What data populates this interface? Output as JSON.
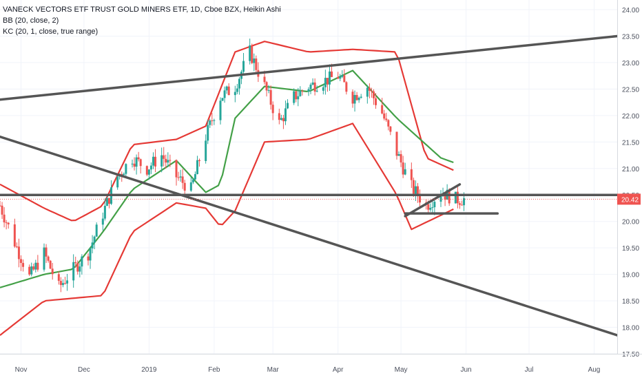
{
  "header": {
    "title": "VANECK VECTORS ETF TRUST GOLD MINERS ETF, 1D, Cboe BZX, Heikin Ashi",
    "indicator_bb": "BB (20, close, 2)",
    "indicator_kc": "KC (20, 1, close, true range)"
  },
  "colors": {
    "up": "#26a69a",
    "down": "#ef5350",
    "bollinger": "#e53935",
    "keltner": "#43a047",
    "trendline": "#555555",
    "last_price": "#ef5350"
  },
  "chart_data": {
    "type": "candlestick",
    "y_axis": {
      "ticks": [
        "24.00",
        "23.50",
        "23.00",
        "22.50",
        "22.00",
        "21.50",
        "21.00",
        "20.50",
        "20.00",
        "19.50",
        "19.00",
        "18.50",
        "18.00",
        "17.50"
      ],
      "range": [
        17.5,
        24.0
      ]
    },
    "x_axis": {
      "labels": [
        "Nov",
        "Dec",
        "2019",
        "Feb",
        "Mar",
        "Apr",
        "May",
        "Jun",
        "Jul",
        "Aug"
      ],
      "range": [
        "2018-10-22",
        "2019-08-12"
      ]
    },
    "last_price": "20.42",
    "price_path": [
      [
        "2018-10-22",
        20.3
      ],
      [
        "2018-10-29",
        19.6
      ],
      [
        "2018-11-05",
        18.95
      ],
      [
        "2018-11-12",
        19.4
      ],
      [
        "2018-11-19",
        18.75
      ],
      [
        "2018-11-26",
        19.1
      ],
      [
        "2018-12-03",
        19.4
      ],
      [
        "2018-12-10",
        20.15
      ],
      [
        "2018-12-17",
        20.85
      ],
      [
        "2018-12-24",
        21.2
      ],
      [
        "2018-12-31",
        21.0
      ],
      [
        "2019-01-07",
        21.25
      ],
      [
        "2019-01-14",
        20.85
      ],
      [
        "2019-01-21",
        20.6
      ],
      [
        "2019-01-28",
        21.6
      ],
      [
        "2019-02-04",
        22.35
      ],
      [
        "2019-02-11",
        22.55
      ],
      [
        "2019-02-18",
        23.2
      ],
      [
        "2019-02-25",
        22.55
      ],
      [
        "2019-03-04",
        21.85
      ],
      [
        "2019-03-11",
        22.35
      ],
      [
        "2019-03-18",
        22.55
      ],
      [
        "2019-03-25",
        22.65
      ],
      [
        "2019-04-01",
        22.75
      ],
      [
        "2019-04-08",
        22.35
      ],
      [
        "2019-04-15",
        22.55
      ],
      [
        "2019-04-22",
        22.05
      ],
      [
        "2019-04-29",
        21.3
      ],
      [
        "2019-05-06",
        20.65
      ],
      [
        "2019-05-13",
        20.3
      ],
      [
        "2019-05-20",
        20.55
      ],
      [
        "2019-05-27",
        20.42
      ]
    ],
    "bollinger_upper": [
      [
        "2018-10-22",
        20.7
      ],
      [
        "2018-11-12",
        20.25
      ],
      [
        "2018-11-26",
        20.0
      ],
      [
        "2018-12-10",
        20.3
      ],
      [
        "2018-12-24",
        21.45
      ],
      [
        "2019-01-14",
        21.55
      ],
      [
        "2019-01-28",
        21.8
      ],
      [
        "2019-02-11",
        23.2
      ],
      [
        "2019-02-25",
        23.4
      ],
      [
        "2019-03-18",
        23.2
      ],
      [
        "2019-04-08",
        23.25
      ],
      [
        "2019-04-29",
        23.2
      ],
      [
        "2019-05-13",
        21.2
      ],
      [
        "2019-05-27",
        20.95
      ]
    ],
    "bollinger_lower": [
      [
        "2018-10-22",
        17.85
      ],
      [
        "2018-11-12",
        18.5
      ],
      [
        "2018-11-26",
        18.55
      ],
      [
        "2018-12-10",
        18.6
      ],
      [
        "2018-12-24",
        19.8
      ],
      [
        "2019-01-14",
        20.35
      ],
      [
        "2019-01-28",
        20.25
      ],
      [
        "2019-02-04",
        19.9
      ],
      [
        "2019-02-11",
        20.2
      ],
      [
        "2019-02-25",
        21.5
      ],
      [
        "2019-03-18",
        21.55
      ],
      [
        "2019-04-08",
        21.85
      ],
      [
        "2019-04-29",
        20.5
      ],
      [
        "2019-05-06",
        19.85
      ],
      [
        "2019-05-27",
        20.25
      ]
    ],
    "keltner_middle": [
      [
        "2018-10-22",
        18.75
      ],
      [
        "2018-11-12",
        19.0
      ],
      [
        "2018-11-26",
        19.1
      ],
      [
        "2018-12-10",
        19.8
      ],
      [
        "2018-12-24",
        20.6
      ],
      [
        "2019-01-14",
        21.15
      ],
      [
        "2019-01-28",
        20.55
      ],
      [
        "2019-02-04",
        20.7
      ],
      [
        "2019-02-11",
        21.95
      ],
      [
        "2019-02-25",
        22.55
      ],
      [
        "2019-03-18",
        22.45
      ],
      [
        "2019-04-08",
        22.85
      ],
      [
        "2019-04-29",
        21.95
      ],
      [
        "2019-05-20",
        21.2
      ],
      [
        "2019-05-27",
        21.1
      ]
    ],
    "trendlines": [
      {
        "label": "upper-trendline",
        "from": [
          "2018-10-22",
          22.3
        ],
        "to": [
          "2019-08-12",
          23.5
        ]
      },
      {
        "label": "falling-trendline",
        "from": [
          "2018-10-22",
          21.6
        ],
        "to": [
          "2019-08-12",
          17.85
        ]
      },
      {
        "label": "support-line",
        "from": [
          "2018-10-22",
          20.5
        ],
        "to": [
          "2019-08-12",
          20.5
        ]
      },
      {
        "label": "rising-wedge-line",
        "from": [
          "2019-05-03",
          20.1
        ],
        "to": [
          "2019-05-29",
          20.7
        ]
      },
      {
        "label": "flat-base-line",
        "from": [
          "2019-05-03",
          20.15
        ],
        "to": [
          "2019-06-16",
          20.15
        ]
      }
    ]
  }
}
